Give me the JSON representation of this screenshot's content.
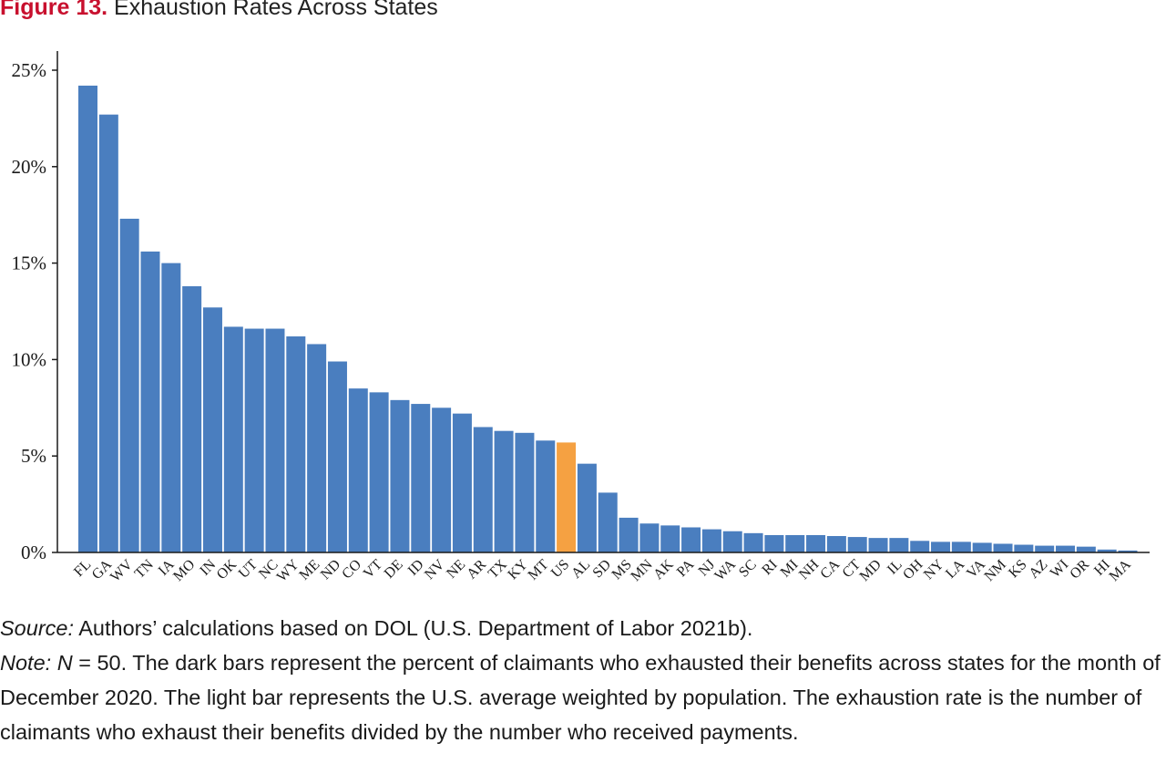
{
  "figure": {
    "label": "Figure 13.",
    "title": "Exhaustion Rates Across States"
  },
  "colors": {
    "state_bar": "#4a7ebf",
    "us_bar": "#f5a142",
    "figure_label": "#c8102e",
    "axis": "#1a1a1a"
  },
  "chart_data": {
    "type": "bar",
    "title": "Exhaustion Rates Across States",
    "xlabel": "",
    "ylabel": "",
    "ylim": [
      0,
      26
    ],
    "yticks": [
      0,
      5,
      10,
      15,
      20,
      25
    ],
    "ytick_labels": [
      "0%",
      "5%",
      "10%",
      "15%",
      "20%",
      "25%"
    ],
    "grid": false,
    "legend": "none",
    "highlight_category": "US",
    "categories": [
      "FL",
      "GA",
      "WV",
      "TN",
      "IA",
      "MO",
      "IN",
      "OK",
      "UT",
      "NC",
      "WY",
      "ME",
      "ND",
      "CO",
      "VT",
      "DE",
      "ID",
      "NV",
      "NE",
      "AR",
      "TX",
      "KY",
      "MT",
      "US",
      "AL",
      "SD",
      "MS",
      "MN",
      "AK",
      "PA",
      "NJ",
      "WA",
      "SC",
      "RI",
      "MI",
      "NH",
      "CA",
      "CT",
      "MD",
      "IL",
      "OH",
      "NY",
      "LA",
      "VA",
      "NM",
      "KS",
      "AZ",
      "WI",
      "OR",
      "HI",
      "MA"
    ],
    "values": [
      24.2,
      22.7,
      17.3,
      15.6,
      15.0,
      13.8,
      12.7,
      11.7,
      11.6,
      11.6,
      11.2,
      10.8,
      9.9,
      8.5,
      8.3,
      7.9,
      7.7,
      7.5,
      7.2,
      6.5,
      6.3,
      6.2,
      5.8,
      5.7,
      4.6,
      3.1,
      1.8,
      1.5,
      1.4,
      1.3,
      1.2,
      1.1,
      1.0,
      0.9,
      0.9,
      0.9,
      0.85,
      0.8,
      0.75,
      0.75,
      0.6,
      0.55,
      0.55,
      0.5,
      0.45,
      0.4,
      0.35,
      0.35,
      0.3,
      0.15,
      0.1
    ]
  },
  "notes": {
    "source_label": "Source:",
    "source_text": " Authors’ calculations based on DOL (U.S. Department of Labor 2021b).",
    "note_label": "Note: ",
    "note_n": "N",
    "note_text": " = 50. The dark bars represent the percent of claimants who exhausted their benefits across states for the month of December 2020. The light bar represents the U.S. average weighted by population. The exhaustion rate is the number of claimants who exhaust their benefits divided by the number who received payments."
  }
}
